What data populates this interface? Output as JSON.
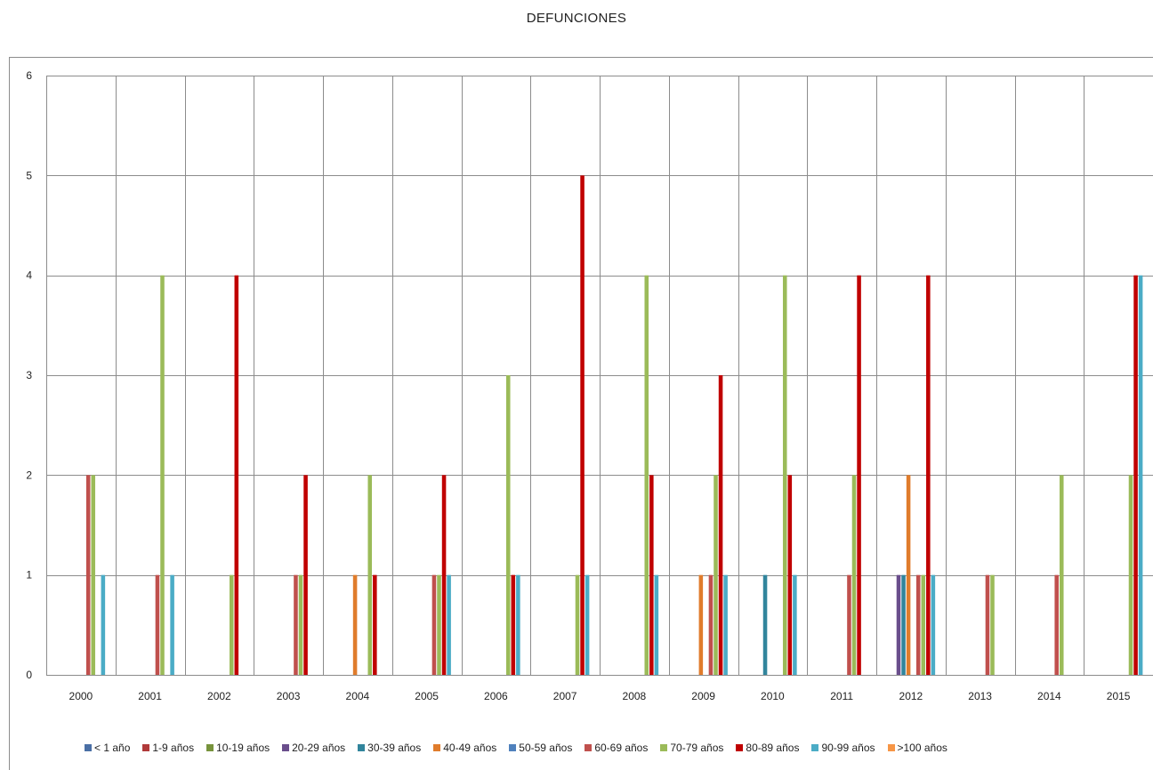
{
  "chart_data": {
    "type": "bar",
    "title": "DEFUNCIONES",
    "xlabel": "",
    "ylabel": "",
    "ylim": [
      0,
      6
    ],
    "yticks": [
      0,
      1,
      2,
      3,
      4,
      5,
      6
    ],
    "grid": true,
    "legend_position": "bottom",
    "categories": [
      "2000",
      "2001",
      "2002",
      "2003",
      "2004",
      "2005",
      "2006",
      "2007",
      "2008",
      "2009",
      "2010",
      "2011",
      "2012",
      "2013",
      "2014",
      "2015"
    ],
    "series": [
      {
        "name": "< 1 año",
        "color": "#4a6fa5",
        "values": [
          0,
          0,
          0,
          0,
          0,
          0,
          0,
          0,
          0,
          0,
          0,
          0,
          0,
          0,
          0,
          0
        ]
      },
      {
        "name": "1-9 años",
        "color": "#b03a3a",
        "values": [
          0,
          0,
          0,
          0,
          0,
          0,
          0,
          0,
          0,
          0,
          0,
          0,
          0,
          0,
          0,
          0
        ]
      },
      {
        "name": "10-19 años",
        "color": "#77933c",
        "values": [
          0,
          0,
          0,
          0,
          0,
          0,
          0,
          0,
          0,
          0,
          0,
          0,
          0,
          0,
          0,
          0
        ]
      },
      {
        "name": "20-29 años",
        "color": "#6a4e8c",
        "values": [
          0,
          0,
          0,
          0,
          0,
          0,
          0,
          0,
          0,
          0,
          0,
          0,
          1,
          0,
          0,
          0
        ]
      },
      {
        "name": "30-39 años",
        "color": "#31859c",
        "values": [
          0,
          0,
          0,
          0,
          0,
          0,
          0,
          0,
          0,
          0,
          1,
          0,
          1,
          0,
          0,
          0
        ]
      },
      {
        "name": "40-49 años",
        "color": "#e07c2c",
        "values": [
          0,
          0,
          0,
          0,
          1,
          0,
          0,
          0,
          0,
          1,
          0,
          0,
          2,
          0,
          0,
          0
        ]
      },
      {
        "name": "50-59 años",
        "color": "#4f81bd",
        "values": [
          0,
          0,
          0,
          0,
          0,
          0,
          0,
          0,
          0,
          0,
          0,
          0,
          0,
          0,
          0,
          0
        ]
      },
      {
        "name": "60-69 años",
        "color": "#c0504d",
        "values": [
          2,
          1,
          0,
          1,
          0,
          1,
          0,
          0,
          0,
          1,
          0,
          1,
          1,
          1,
          1,
          0
        ]
      },
      {
        "name": "70-79 años",
        "color": "#9bbb59",
        "values": [
          2,
          4,
          1,
          1,
          2,
          1,
          3,
          1,
          4,
          2,
          4,
          2,
          1,
          1,
          2,
          2
        ]
      },
      {
        "name": "80-89 años",
        "color": "#c00000",
        "values": [
          0,
          0,
          4,
          2,
          1,
          2,
          1,
          5,
          2,
          3,
          2,
          4,
          4,
          0,
          0,
          4
        ]
      },
      {
        "name": "90-99 años",
        "color": "#4bacc6",
        "values": [
          1,
          1,
          0,
          0,
          0,
          1,
          1,
          1,
          1,
          1,
          1,
          0,
          1,
          0,
          0,
          4
        ]
      },
      {
        "name": ">100 años",
        "color": "#f79646",
        "values": [
          0,
          0,
          0,
          0,
          0,
          0,
          0,
          0,
          0,
          0,
          0,
          0,
          0,
          0,
          0,
          0
        ]
      }
    ]
  }
}
